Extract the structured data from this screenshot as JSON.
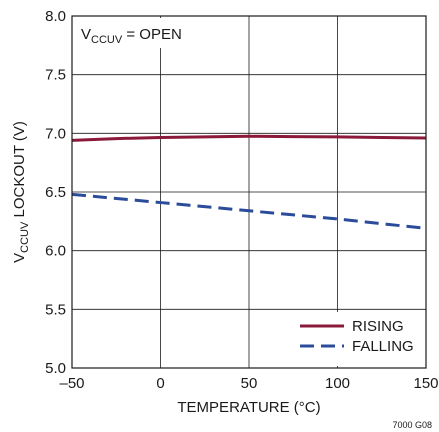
{
  "chart_data": {
    "type": "line",
    "xlabel": "TEMPERATURE (°C)",
    "ylabel": {
      "prefix": "V",
      "sub": "CCUV",
      "suffix": " LOCKOUT (V)"
    },
    "xlim": [
      -50,
      150
    ],
    "ylim": [
      5.0,
      8.0
    ],
    "x_ticks": [
      -50,
      0,
      50,
      100,
      150
    ],
    "x_tick_labels": [
      "–50",
      "0",
      "50",
      "100",
      "150"
    ],
    "y_ticks": [
      5.0,
      5.5,
      6.0,
      6.5,
      7.0,
      7.5,
      8.0
    ],
    "y_tick_labels": [
      "5.0",
      "5.5",
      "6.0",
      "6.5",
      "7.0",
      "7.5",
      "8.0"
    ],
    "grid": true,
    "legend_position": "bottom-right",
    "annotation": {
      "prefix": "V",
      "sub": "CCUV",
      "suffix": " = OPEN"
    },
    "figure_id": "7000 G08",
    "series": [
      {
        "name": "RISING",
        "color": "#8b1a3a",
        "style": "solid",
        "x": [
          -50,
          -25,
          0,
          25,
          50,
          75,
          100,
          125,
          150
        ],
        "y": [
          6.94,
          6.955,
          6.965,
          6.97,
          6.975,
          6.972,
          6.97,
          6.965,
          6.96
        ]
      },
      {
        "name": "FALLING",
        "color": "#2b4c9b",
        "style": "dashed",
        "x": [
          -50,
          0,
          50,
          100,
          150
        ],
        "y": [
          6.48,
          6.41,
          6.34,
          6.27,
          6.19
        ]
      }
    ]
  }
}
